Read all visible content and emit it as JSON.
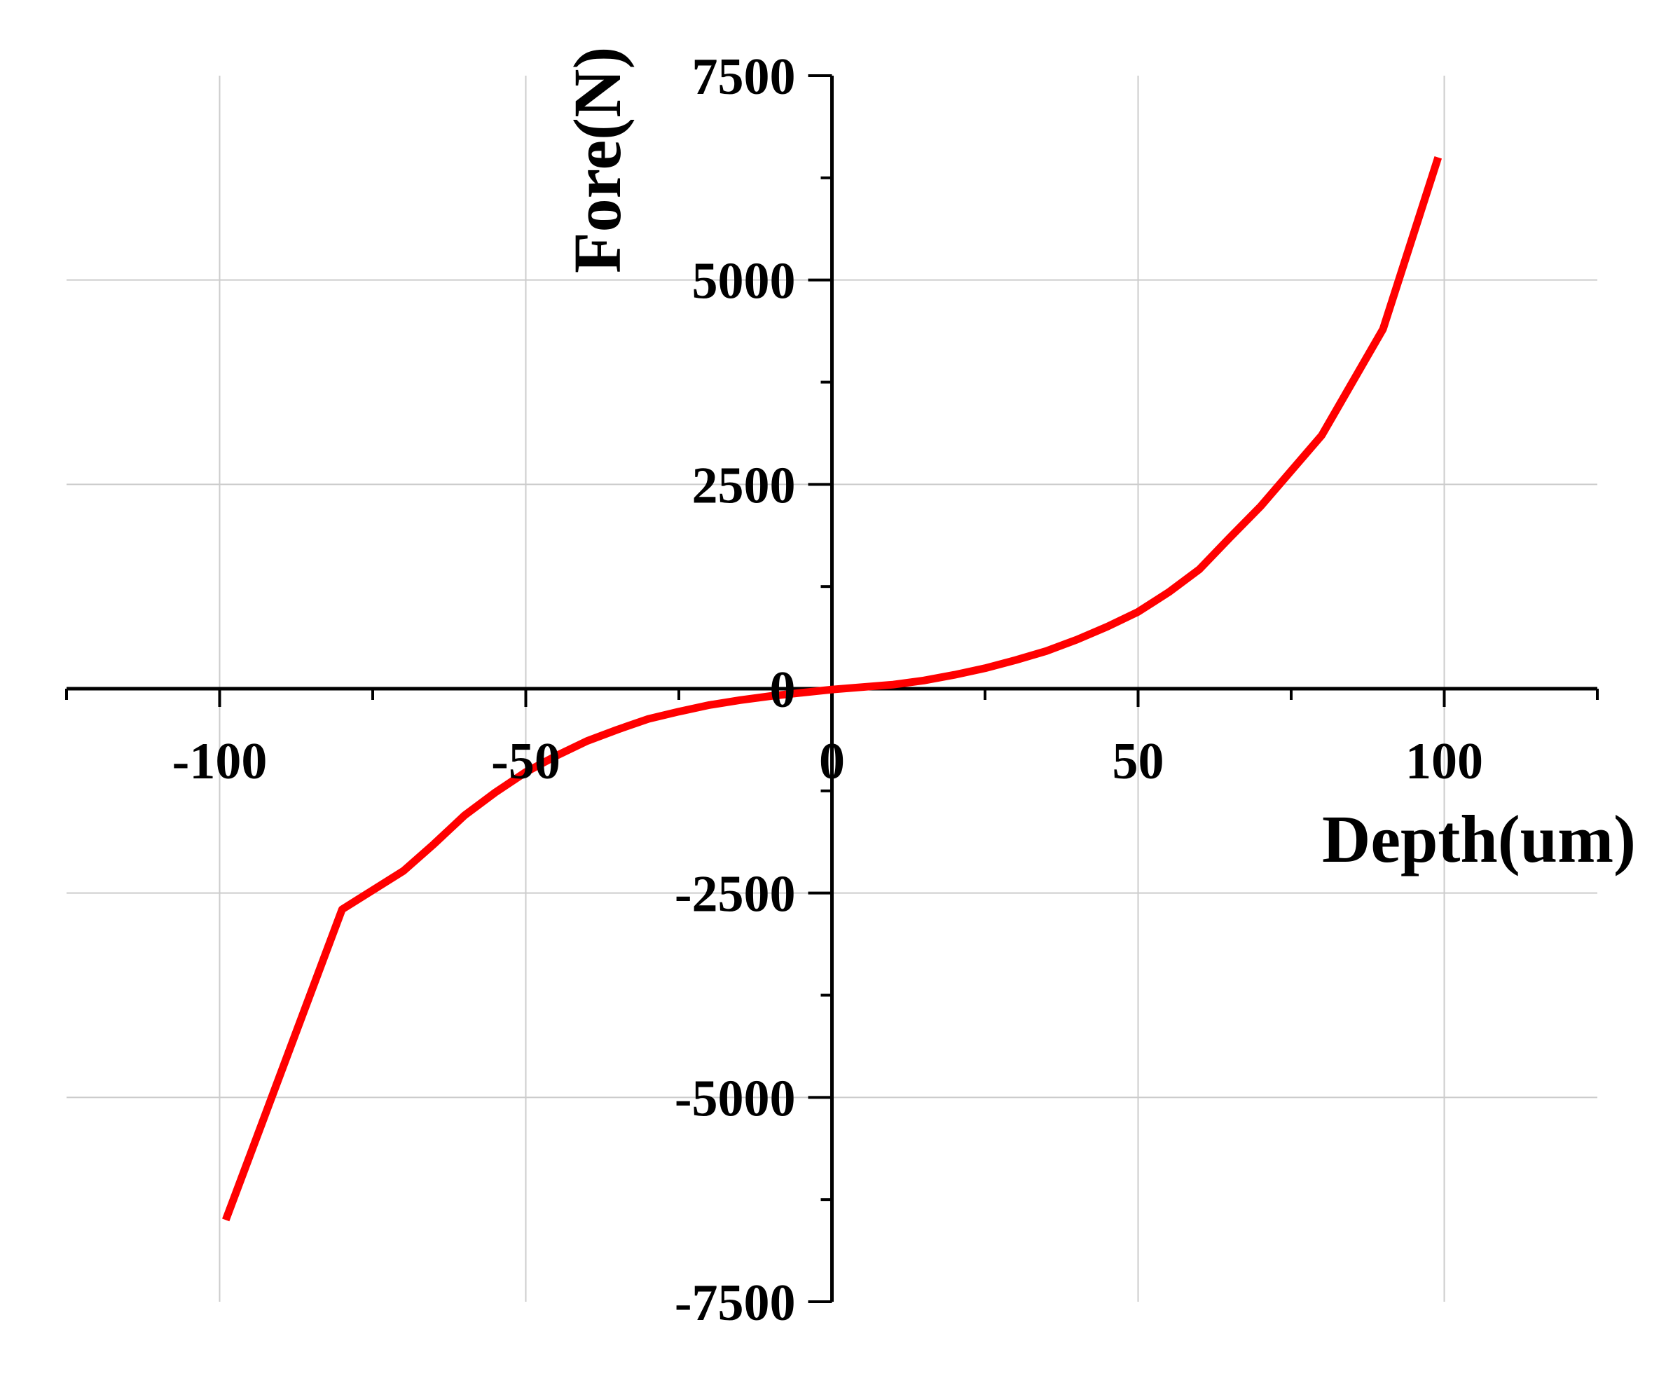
{
  "chart_data": {
    "type": "line",
    "title": "",
    "xlabel": "Depth(um)",
    "ylabel": "Fore(N)",
    "xlim": [
      -125,
      125
    ],
    "ylim": [
      -7500,
      7500
    ],
    "xticks": [
      -100,
      -50,
      0,
      50,
      100
    ],
    "yticks": [
      -7500,
      -5000,
      -2500,
      0,
      2500,
      5000,
      7500
    ],
    "x_tick_labels": [
      "-100",
      "-50",
      "0",
      "50",
      "100"
    ],
    "y_tick_labels": [
      "-7500",
      "-5000",
      "-2500",
      "0",
      "2500",
      "5000",
      "7500"
    ],
    "grid": true,
    "legend": "none",
    "colors": {
      "line": "#ff0000",
      "axis": "#000000",
      "grid": "#cccccc"
    },
    "series": [
      {
        "values": [
          [
            -99,
            -6500
          ],
          [
            -95,
            -5700
          ],
          [
            -90,
            -4700
          ],
          [
            -85,
            -3700
          ],
          [
            -80,
            -2700
          ],
          [
            -70,
            -2230
          ],
          [
            -65,
            -1900
          ],
          [
            -60,
            -1550
          ],
          [
            -55,
            -1270
          ],
          [
            -50,
            -1020
          ],
          [
            -45,
            -820
          ],
          [
            -40,
            -640
          ],
          [
            -35,
            -500
          ],
          [
            -30,
            -370
          ],
          [
            -25,
            -280
          ],
          [
            -20,
            -200
          ],
          [
            -15,
            -140
          ],
          [
            -10,
            -90
          ],
          [
            -5,
            -50
          ],
          [
            0,
            -10
          ],
          [
            5,
            20
          ],
          [
            10,
            50
          ],
          [
            15,
            100
          ],
          [
            20,
            170
          ],
          [
            25,
            250
          ],
          [
            30,
            350
          ],
          [
            35,
            460
          ],
          [
            40,
            600
          ],
          [
            45,
            760
          ],
          [
            50,
            940
          ],
          [
            55,
            1180
          ],
          [
            60,
            1460
          ],
          [
            65,
            1850
          ],
          [
            70,
            2230
          ],
          [
            80,
            3100
          ],
          [
            90,
            4400
          ],
          [
            99,
            6500
          ]
        ]
      }
    ]
  }
}
